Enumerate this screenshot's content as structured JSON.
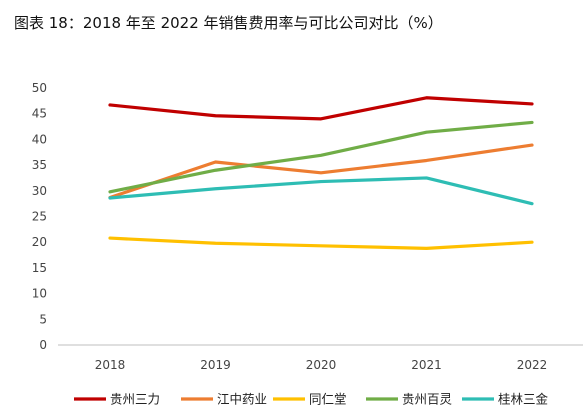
{
  "title": "图表 18：2018 年至 2022 年销售费用率与可比公司对比（%）",
  "chart_data": {
    "type": "line",
    "title": "图表 18：2018 年至 2022 年销售费用率与可比公司对比（%）",
    "x": [
      "2018",
      "2019",
      "2020",
      "2021",
      "2022"
    ],
    "ylim": [
      0,
      50
    ],
    "yticks": [
      0,
      5,
      10,
      15,
      20,
      25,
      30,
      35,
      40,
      45,
      50
    ],
    "grid": false,
    "legend_position": "bottom",
    "series": [
      {
        "name": "贵州三力",
        "color": "#C00000",
        "values": [
          46.7,
          44.6,
          44.0,
          48.1,
          46.9
        ]
      },
      {
        "name": "江中药业",
        "color": "#ED7D31",
        "values": [
          28.7,
          35.6,
          33.5,
          35.9,
          38.9
        ]
      },
      {
        "name": "同仁堂",
        "color": "#FFC000",
        "values": [
          20.8,
          19.8,
          19.3,
          18.8,
          20.0
        ]
      },
      {
        "name": "贵州百灵",
        "color": "#70AD47",
        "values": [
          29.8,
          34.0,
          36.9,
          41.4,
          43.3
        ]
      },
      {
        "name": "桂林三金",
        "color": "#2EBDB4",
        "values": [
          28.6,
          30.4,
          31.8,
          32.5,
          27.5
        ]
      }
    ]
  }
}
